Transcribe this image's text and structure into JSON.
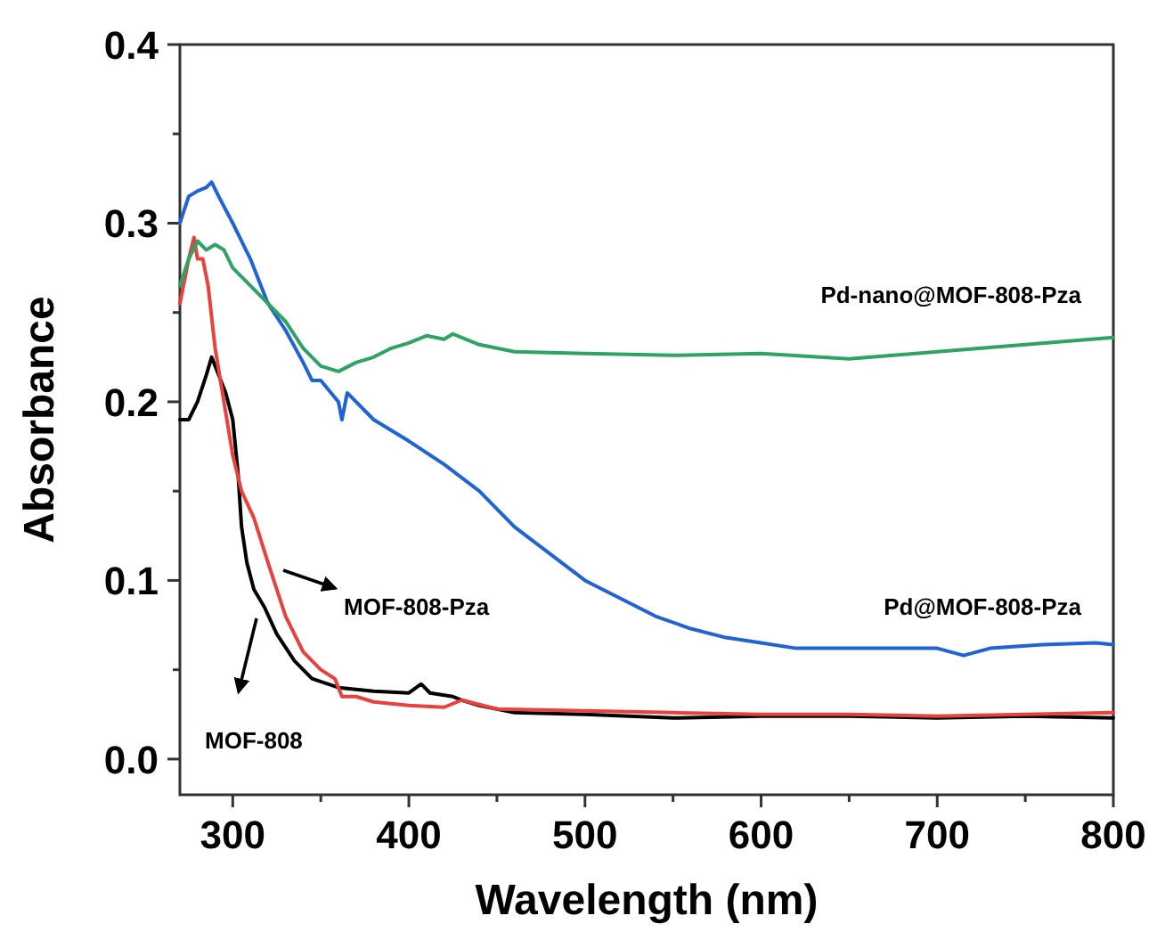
{
  "chart_data": {
    "type": "line",
    "xlabel": "Wavelength (nm)",
    "ylabel": "Absorbance",
    "xlim": [
      270,
      800
    ],
    "ylim": [
      -0.02,
      0.4
    ],
    "xticks": [
      300,
      {
        "value": 350,
        "label": null
      },
      400,
      {
        "value": 450,
        "label": null
      },
      500,
      {
        "value": 550,
        "label": null
      },
      600,
      {
        "value": 650,
        "label": null
      },
      700,
      {
        "value": 750,
        "label": null
      },
      800
    ],
    "yticks": [
      {
        "value": 0,
        "label": "0.0"
      },
      {
        "value": 0.05,
        "label": null
      },
      0.1,
      {
        "value": 0.15,
        "label": null
      },
      0.2,
      {
        "value": 0.25,
        "label": null
      },
      0.3,
      {
        "value": 0.35,
        "label": null
      },
      0.4
    ],
    "grid": false,
    "line_style": "solid",
    "marker": "none",
    "series": [
      {
        "name": "MOF-808",
        "color": "#000000",
        "x": [
          270,
          275,
          280,
          285,
          288,
          292,
          296,
          300,
          303,
          305,
          308,
          312,
          318,
          325,
          335,
          345,
          360,
          380,
          400,
          407,
          412,
          425,
          430,
          440,
          460,
          500,
          550,
          600,
          650,
          700,
          750,
          800
        ],
        "values": [
          0.19,
          0.19,
          0.2,
          0.215,
          0.225,
          0.215,
          0.205,
          0.19,
          0.16,
          0.13,
          0.11,
          0.095,
          0.085,
          0.07,
          0.055,
          0.045,
          0.04,
          0.038,
          0.037,
          0.042,
          0.037,
          0.035,
          0.033,
          0.03,
          0.026,
          0.025,
          0.023,
          0.024,
          0.024,
          0.023,
          0.024,
          0.023
        ]
      },
      {
        "name": "MOF-808-Pza",
        "color": "#e8413e",
        "x": [
          270,
          275,
          278,
          280,
          283,
          286,
          290,
          295,
          300,
          305,
          312,
          320,
          330,
          340,
          350,
          358,
          362,
          370,
          380,
          400,
          420,
          430,
          450,
          500,
          550,
          600,
          650,
          700,
          750,
          800
        ],
        "values": [
          0.255,
          0.28,
          0.292,
          0.28,
          0.28,
          0.265,
          0.23,
          0.2,
          0.17,
          0.15,
          0.135,
          0.11,
          0.08,
          0.06,
          0.05,
          0.045,
          0.035,
          0.035,
          0.032,
          0.03,
          0.029,
          0.033,
          0.028,
          0.027,
          0.026,
          0.025,
          0.025,
          0.024,
          0.025,
          0.026
        ]
      },
      {
        "name": "Pd@MOF-808-Pza",
        "color": "#1f63d6",
        "x": [
          270,
          275,
          280,
          285,
          288,
          292,
          300,
          310,
          320,
          330,
          340,
          345,
          350,
          360,
          362,
          365,
          380,
          400,
          420,
          440,
          460,
          480,
          500,
          520,
          540,
          560,
          580,
          600,
          620,
          650,
          680,
          700,
          715,
          730,
          760,
          790,
          800
        ],
        "values": [
          0.3,
          0.315,
          0.318,
          0.32,
          0.323,
          0.315,
          0.3,
          0.28,
          0.255,
          0.24,
          0.222,
          0.212,
          0.212,
          0.2,
          0.19,
          0.205,
          0.19,
          0.178,
          0.165,
          0.15,
          0.13,
          0.115,
          0.1,
          0.09,
          0.08,
          0.073,
          0.068,
          0.065,
          0.062,
          0.062,
          0.062,
          0.062,
          0.058,
          0.062,
          0.064,
          0.065,
          0.064
        ]
      },
      {
        "name": "Pd-nano@MOF-808-Pza",
        "color": "#2ea363",
        "x": [
          270,
          275,
          280,
          285,
          290,
          295,
          300,
          310,
          320,
          330,
          340,
          350,
          360,
          370,
          380,
          390,
          400,
          410,
          420,
          425,
          440,
          460,
          500,
          550,
          600,
          650,
          700,
          750,
          800
        ],
        "values": [
          0.265,
          0.28,
          0.29,
          0.285,
          0.288,
          0.285,
          0.275,
          0.265,
          0.255,
          0.245,
          0.23,
          0.22,
          0.217,
          0.222,
          0.225,
          0.23,
          0.233,
          0.237,
          0.235,
          0.238,
          0.232,
          0.228,
          0.227,
          0.226,
          0.227,
          0.224,
          0.228,
          0.232,
          0.236
        ]
      }
    ]
  }
}
